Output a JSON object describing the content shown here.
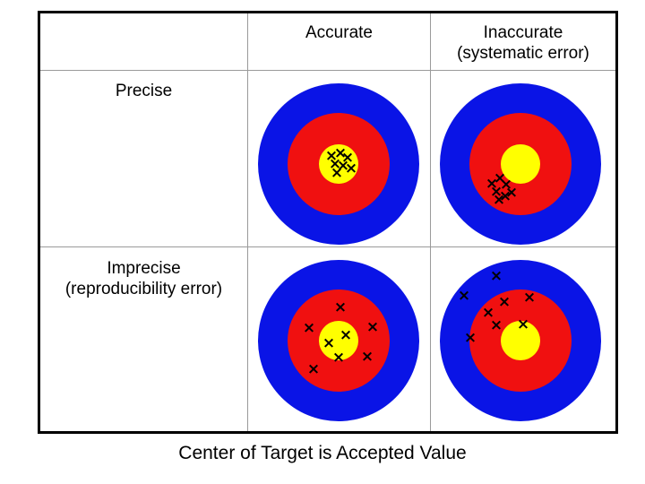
{
  "columns": {
    "accurate": "Accurate",
    "inaccurate_line1": "Inaccurate",
    "inaccurate_line2": "(systematic error)"
  },
  "rows": {
    "precise": "Precise",
    "imprecise_line1": "Imprecise",
    "imprecise_line2": "(reproducibility error)"
  },
  "caption": "Center of Target is Accepted Value",
  "colors": {
    "outer_ring": "#0a14e6",
    "middle_ring": "#f01010",
    "bullseye": "#ffff00",
    "mark": "#000000"
  },
  "mark_glyph": "×"
}
